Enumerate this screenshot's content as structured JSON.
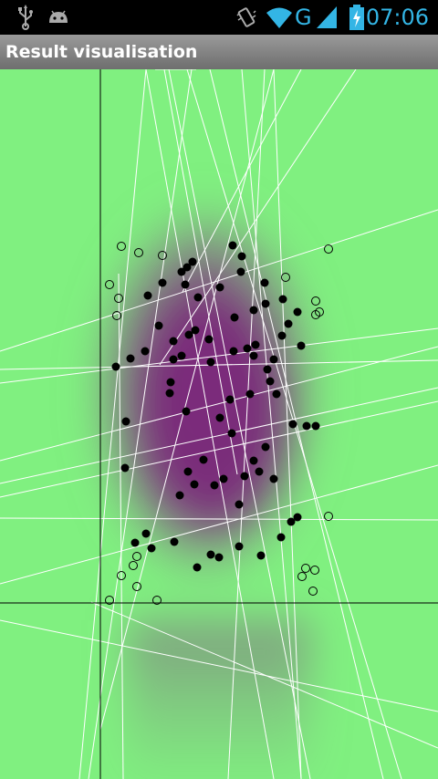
{
  "status_bar": {
    "time": "07:06",
    "network_type": "G",
    "icons": [
      "usb-icon",
      "android-icon",
      "vibrate-icon",
      "wifi-icon",
      "signal-icon",
      "battery-charging-icon"
    ],
    "accent_color": "#33b5e5"
  },
  "title_bar": {
    "title": "Result visualisation"
  },
  "plot": {
    "background_color": "#80f080",
    "cluster_color": "#7a2a7a",
    "line_color": "#ffffff",
    "axis_color": "#000000",
    "filled_marker": "filled-circle",
    "hollow_marker": "hollow-circle"
  }
}
